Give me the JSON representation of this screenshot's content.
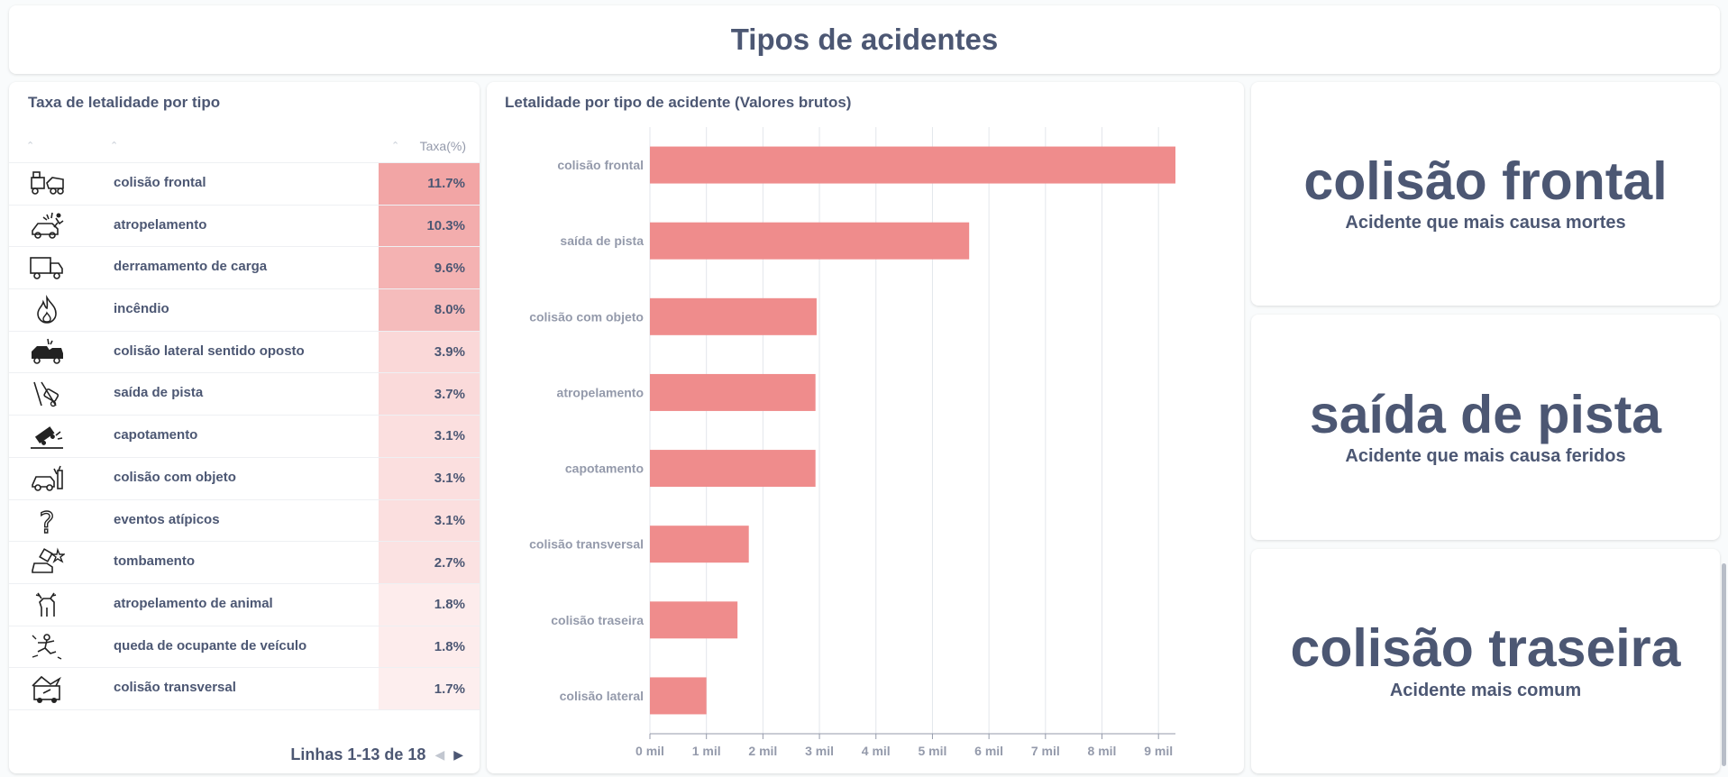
{
  "page_title": "Tipos de acidentes",
  "table": {
    "title": "Taxa de letalidade por tipo",
    "header_rate": "Taxa(%)",
    "rows": [
      {
        "icon": "head-on-collision-icon",
        "name": "colisão frontal",
        "rate": "11.7%",
        "value": 11.7
      },
      {
        "icon": "pedestrian-hit-icon",
        "name": "atropelamento",
        "rate": "10.3%",
        "value": 10.3
      },
      {
        "icon": "truck-icon",
        "name": "derramamento de carga",
        "rate": "9.6%",
        "value": 9.6
      },
      {
        "icon": "fire-icon",
        "name": "incêndio",
        "rate": "8.0%",
        "value": 8.0
      },
      {
        "icon": "side-collision-icon",
        "name": "colisão lateral sentido oposto",
        "rate": "3.9%",
        "value": 3.9
      },
      {
        "icon": "road-exit-icon",
        "name": "saída de pista",
        "rate": "3.7%",
        "value": 3.7
      },
      {
        "icon": "rollover-icon",
        "name": "capotamento",
        "rate": "3.1%",
        "value": 3.1
      },
      {
        "icon": "object-collision-icon",
        "name": "colisão com objeto",
        "rate": "3.1%",
        "value": 3.1
      },
      {
        "icon": "question-mark-icon",
        "name": "eventos atípicos",
        "rate": "3.1%",
        "value": 3.1
      },
      {
        "icon": "tipping-over-icon",
        "name": "tombamento",
        "rate": "2.7%",
        "value": 2.7
      },
      {
        "icon": "deer-icon",
        "name": "atropelamento de animal",
        "rate": "1.8%",
        "value": 1.8
      },
      {
        "icon": "falling-person-icon",
        "name": "queda de ocupante de veículo",
        "rate": "1.8%",
        "value": 1.8
      },
      {
        "icon": "transverse-collision-icon",
        "name": "colisão transversal",
        "rate": "1.7%",
        "value": 1.7
      }
    ],
    "pagination": "Linhas 1-13 de 18"
  },
  "colors": {
    "text": "#4c5773",
    "bar": "#ef8c8c",
    "heat_high": "#f2a5a5",
    "heat_low": "#fdeeee"
  },
  "chart_data": {
    "type": "bar",
    "orientation": "horizontal",
    "title": "Letalidade por tipo de acidente (Valores brutos)",
    "categories": [
      "colisão frontal",
      "saída de pista",
      "colisão com objeto",
      "atropelamento",
      "capotamento",
      "colisão transversal",
      "colisão traseira",
      "colisão lateral"
    ],
    "values": [
      9300,
      5650,
      2950,
      2930,
      2930,
      1750,
      1550,
      1000
    ],
    "xlim": [
      0,
      9300
    ],
    "xticks": [
      0,
      1000,
      2000,
      3000,
      4000,
      5000,
      6000,
      7000,
      8000,
      9000
    ],
    "xtick_labels": [
      "0 mil",
      "1 mil",
      "2 mil",
      "3 mil",
      "4 mil",
      "5 mil",
      "6 mil",
      "7 mil",
      "8 mil",
      "9 mil"
    ],
    "grid": true,
    "color": "#ef8c8c"
  },
  "kpis": [
    {
      "value": "colisão frontal",
      "label": "Acidente que mais causa mortes"
    },
    {
      "value": "saída de pista",
      "label": "Acidente que mais causa feridos"
    },
    {
      "value": "colisão traseira",
      "label": "Acidente mais comum"
    }
  ]
}
